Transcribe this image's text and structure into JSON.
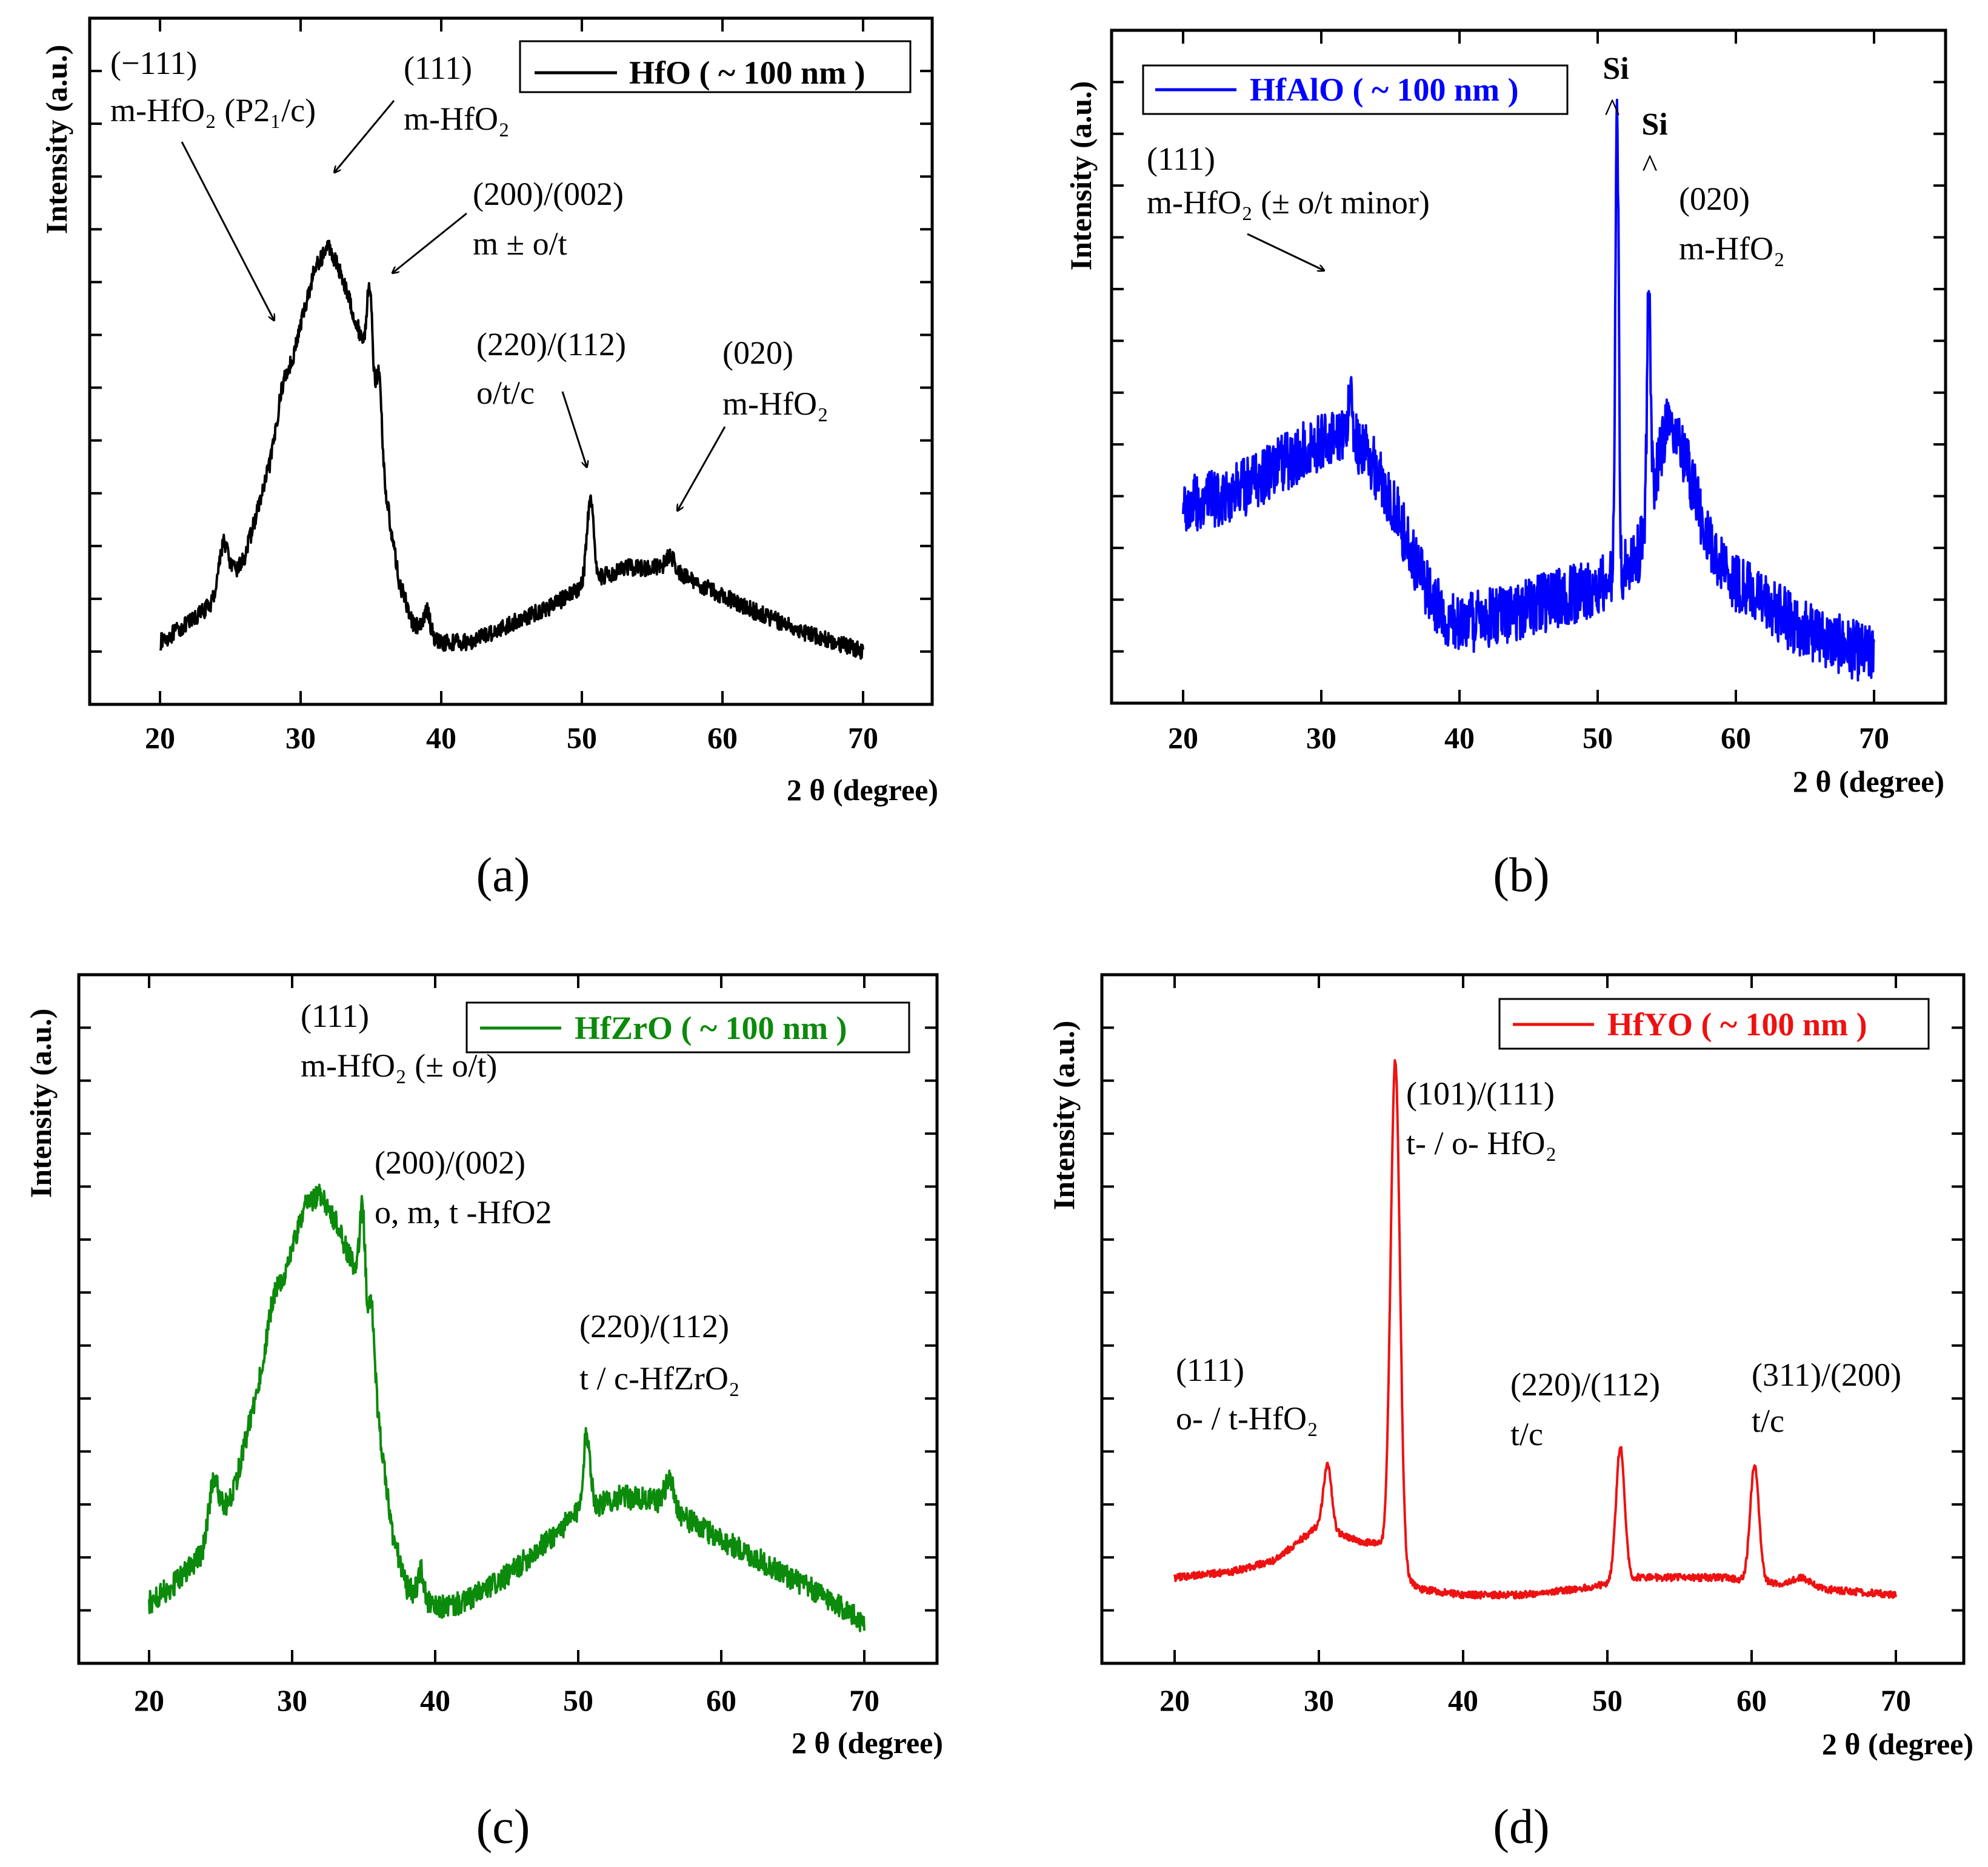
{
  "chart_data": [
    {
      "panel": "(a)",
      "type": "line",
      "title": "",
      "xlabel": "2 θ (degree)",
      "ylabel": "Intensity (a.u.)",
      "xlim": [
        15,
        75
      ],
      "ylim": [
        0,
        1
      ],
      "xticks": [
        20,
        30,
        40,
        50,
        60,
        70
      ],
      "color": "#000000",
      "legend": "HfO ( ~ 100 nm )",
      "baseline": [
        [
          20,
          0.02
        ],
        [
          22,
          0.06
        ],
        [
          24,
          0.11
        ],
        [
          26,
          0.2
        ],
        [
          28,
          0.42
        ],
        [
          30,
          0.7
        ],
        [
          31,
          0.82
        ],
        [
          32,
          0.87
        ],
        [
          33,
          0.8
        ],
        [
          34,
          0.7
        ],
        [
          35,
          0.62
        ],
        [
          36,
          0.35
        ],
        [
          37,
          0.15
        ],
        [
          38,
          0.06
        ],
        [
          40,
          0.02
        ],
        [
          42,
          0.02
        ],
        [
          45,
          0.06
        ],
        [
          48,
          0.1
        ],
        [
          50,
          0.14
        ],
        [
          53,
          0.18
        ],
        [
          56,
          0.18
        ],
        [
          58,
          0.15
        ],
        [
          62,
          0.09
        ],
        [
          66,
          0.04
        ],
        [
          68,
          0.02
        ],
        [
          70,
          0.0
        ]
      ],
      "peaks": [
        [
          24.5,
          0.1,
          0.35
        ],
        [
          28.7,
          0.05,
          0.4
        ],
        [
          34.9,
          0.16,
          0.18
        ],
        [
          35.6,
          0.13,
          0.18
        ],
        [
          39.0,
          0.05,
          0.2
        ],
        [
          50.6,
          0.17,
          0.25
        ],
        [
          56.3,
          0.03,
          0.3
        ]
      ],
      "noise": 0.018,
      "annotations": [
        {
          "lines": [
            "(−111)",
            "m-HfO₂ (P2₁/c)"
          ],
          "x": 28.7,
          "y": 0.4
        },
        {
          "lines": [
            "(111)",
            "m-HfO₂"
          ],
          "x": 32.2,
          "y": 0.87
        },
        {
          "lines": [
            "(200)/(002)",
            "m ± o/t"
          ],
          "x": 35.9,
          "y": 0.67
        },
        {
          "lines": [
            "(220)/(112)",
            "o/t/c"
          ],
          "x": 50.6,
          "y": 0.31
        },
        {
          "lines": [
            "(020)",
            "m-HfO₂"
          ],
          "x": 56.5,
          "y": 0.21
        }
      ]
    },
    {
      "panel": "(b)",
      "type": "line",
      "title": "",
      "xlabel": "2 θ (degree)",
      "ylabel": "Intensity (a.u.)",
      "xlim": [
        15,
        75
      ],
      "ylim": [
        0,
        1
      ],
      "xticks": [
        20,
        30,
        40,
        50,
        60,
        70
      ],
      "color": "#0000ff",
      "legend": "HfAlO ( ~ 100 nm )",
      "baseline": [
        [
          20,
          0.35
        ],
        [
          24,
          0.38
        ],
        [
          28,
          0.45
        ],
        [
          31,
          0.5
        ],
        [
          33,
          0.47
        ],
        [
          35,
          0.37
        ],
        [
          37,
          0.22
        ],
        [
          39,
          0.12
        ],
        [
          41,
          0.12
        ],
        [
          45,
          0.15
        ],
        [
          49,
          0.18
        ],
        [
          51,
          0.2
        ],
        [
          53,
          0.26
        ],
        [
          54,
          0.39
        ],
        [
          55,
          0.52
        ],
        [
          56,
          0.48
        ],
        [
          58,
          0.28
        ],
        [
          60,
          0.2
        ],
        [
          64,
          0.12
        ],
        [
          67,
          0.08
        ],
        [
          70,
          0.05
        ]
      ],
      "peaks": [
        [
          32.1,
          0.12,
          0.15
        ],
        [
          51.4,
          0.95,
          0.12
        ],
        [
          53.7,
          0.45,
          0.12
        ]
      ],
      "noise": 0.06,
      "annotations": [
        {
          "lines": [
            "(111)",
            "m-HfO₂ (± o/t minor)"
          ],
          "x": 30.5,
          "y": 0.62
        },
        {
          "lines": [
            "(020)",
            "m-HfO₂"
          ],
          "x": 55.5,
          "y": 0.62
        }
      ],
      "markers": [
        {
          "label": "Si",
          "x": 51.4,
          "y": 0.88
        },
        {
          "label": "Si",
          "x": 53.7,
          "y": 0.77
        }
      ]
    },
    {
      "panel": "(c)",
      "type": "line",
      "title": "",
      "xlabel": "2 θ (degree)",
      "ylabel": "Intensity (a.u.)",
      "xlim": [
        15,
        75
      ],
      "ylim": [
        0,
        1
      ],
      "xticks": [
        20,
        30,
        40,
        50,
        60,
        70
      ],
      "color": "#0b8a0b",
      "legend": "HfZrO ( ~ 100 nm )",
      "baseline": [
        [
          20,
          0.05
        ],
        [
          22,
          0.09
        ],
        [
          24,
          0.15
        ],
        [
          26,
          0.27
        ],
        [
          28,
          0.5
        ],
        [
          30,
          0.72
        ],
        [
          31,
          0.8
        ],
        [
          32,
          0.82
        ],
        [
          33,
          0.77
        ],
        [
          34,
          0.7
        ],
        [
          35,
          0.65
        ],
        [
          36,
          0.4
        ],
        [
          37,
          0.18
        ],
        [
          38,
          0.08
        ],
        [
          40,
          0.04
        ],
        [
          42,
          0.05
        ],
        [
          45,
          0.1
        ],
        [
          48,
          0.17
        ],
        [
          50,
          0.22
        ],
        [
          53,
          0.25
        ],
        [
          56,
          0.24
        ],
        [
          58,
          0.2
        ],
        [
          62,
          0.14
        ],
        [
          66,
          0.08
        ],
        [
          68,
          0.05
        ],
        [
          70,
          0.01
        ]
      ],
      "peaks": [
        [
          24.5,
          0.1,
          0.35
        ],
        [
          28.7,
          0.05,
          0.4
        ],
        [
          34.9,
          0.14,
          0.18
        ],
        [
          35.6,
          0.1,
          0.18
        ],
        [
          39.0,
          0.05,
          0.2
        ],
        [
          50.6,
          0.14,
          0.25
        ],
        [
          56.4,
          0.05,
          0.3
        ]
      ],
      "noise": 0.022,
      "annotations": [
        {
          "lines": [
            "(111)",
            "m-HfO₂ (± o/t)"
          ],
          "x": 32,
          "y": 0.85
        },
        {
          "lines": [
            "(200)/(002)",
            "o, m, t -HfO2"
          ],
          "x": 35,
          "y": 0.7
        },
        {
          "lines": [
            "(220)/(112)",
            "t / c-HfZrO₂"
          ],
          "x": 51,
          "y": 0.42
        }
      ]
    },
    {
      "panel": "(d)",
      "type": "line",
      "title": "",
      "xlabel": "2 θ (degree)",
      "ylabel": "Intensity (a.u.)",
      "xlim": [
        15,
        75
      ],
      "ylim": [
        0,
        1
      ],
      "xticks": [
        20,
        30,
        40,
        50,
        60,
        70
      ],
      "color": "#ee1111",
      "legend": "HfYO ( ~ 100 nm )",
      "baseline": [
        [
          20,
          0.06
        ],
        [
          24,
          0.07
        ],
        [
          27,
          0.09
        ],
        [
          29,
          0.13
        ],
        [
          30,
          0.15
        ],
        [
          31,
          0.14
        ],
        [
          33,
          0.12
        ],
        [
          34,
          0.12
        ],
        [
          35,
          0.1
        ],
        [
          36,
          0.06
        ],
        [
          37,
          0.04
        ],
        [
          40,
          0.03
        ],
        [
          44,
          0.03
        ],
        [
          48,
          0.04
        ],
        [
          50,
          0.05
        ],
        [
          52,
          0.06
        ],
        [
          55,
          0.06
        ],
        [
          58,
          0.06
        ],
        [
          62,
          0.05
        ],
        [
          63.5,
          0.06
        ],
        [
          65,
          0.04
        ],
        [
          70,
          0.03
        ]
      ],
      "peaks": [
        [
          30.6,
          0.11,
          0.28
        ],
        [
          35.3,
          0.86,
          0.32
        ],
        [
          50.9,
          0.23,
          0.3
        ],
        [
          60.2,
          0.2,
          0.3
        ]
      ],
      "noise": 0.006,
      "annotations": [
        {
          "lines": [
            "(111)",
            "o- / t-HfO₂"
          ],
          "x": 30.6,
          "y": 0.3
        },
        {
          "lines": [
            "(101)/(111)",
            "t- / o- HfO₂"
          ],
          "x": 35.4,
          "y": 0.9
        },
        {
          "lines": [
            "(220)/(112)",
            "t/c"
          ],
          "x": 51,
          "y": 0.3
        },
        {
          "lines": [
            "(311)/(200)",
            "t/c"
          ],
          "x": 60.2,
          "y": 0.28
        }
      ]
    }
  ]
}
